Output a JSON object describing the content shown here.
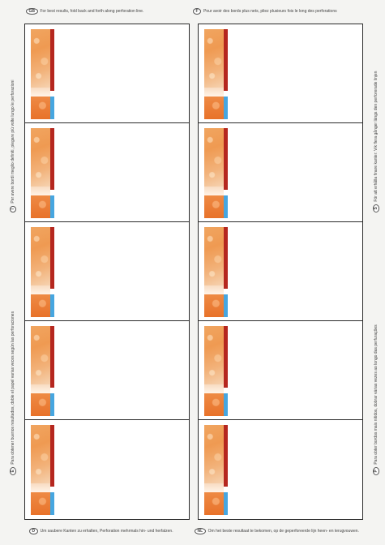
{
  "instructions": {
    "top_left": {
      "code": "GB",
      "text": "For best results, fold back and forth along perforation line."
    },
    "top_right": {
      "code": "F",
      "text": "Pour avoir des bords plus nets, pliez plusieurs fois le long des perforations"
    },
    "left_upper": {
      "code": "I",
      "text": "Per avere bordi meglio definiti, piegare più volte lungo le perforazioni"
    },
    "left_lower": {
      "code": "E",
      "text": "Para obtener buenos resultados, doble el papel varias veces según las perforaciones"
    },
    "right_upper": {
      "code": "S",
      "text": "För att erhålla finare kanter: Vik flera gånger längs den perforerade linjen"
    },
    "right_lower": {
      "code": "P",
      "text": "Para obter bordos mais nítidos, dobrar várias vezes ao longo das perfurações"
    },
    "bottom_left": {
      "code": "D",
      "text": "Um saubere Kanten zu erhalten, Perforation mehrmals hin- und herfalzen."
    },
    "bottom_right": {
      "code": "NL",
      "text": "Om het beste resultaat te bekomen, op de geperforeerde lijn heen- en terugvouwen."
    }
  },
  "cards_per_column": 5,
  "colors": {
    "red_bar": "#b5271f",
    "blue_bar": "#46a6e0",
    "orange": "#ef9a52",
    "border": "#2a2a2a"
  }
}
